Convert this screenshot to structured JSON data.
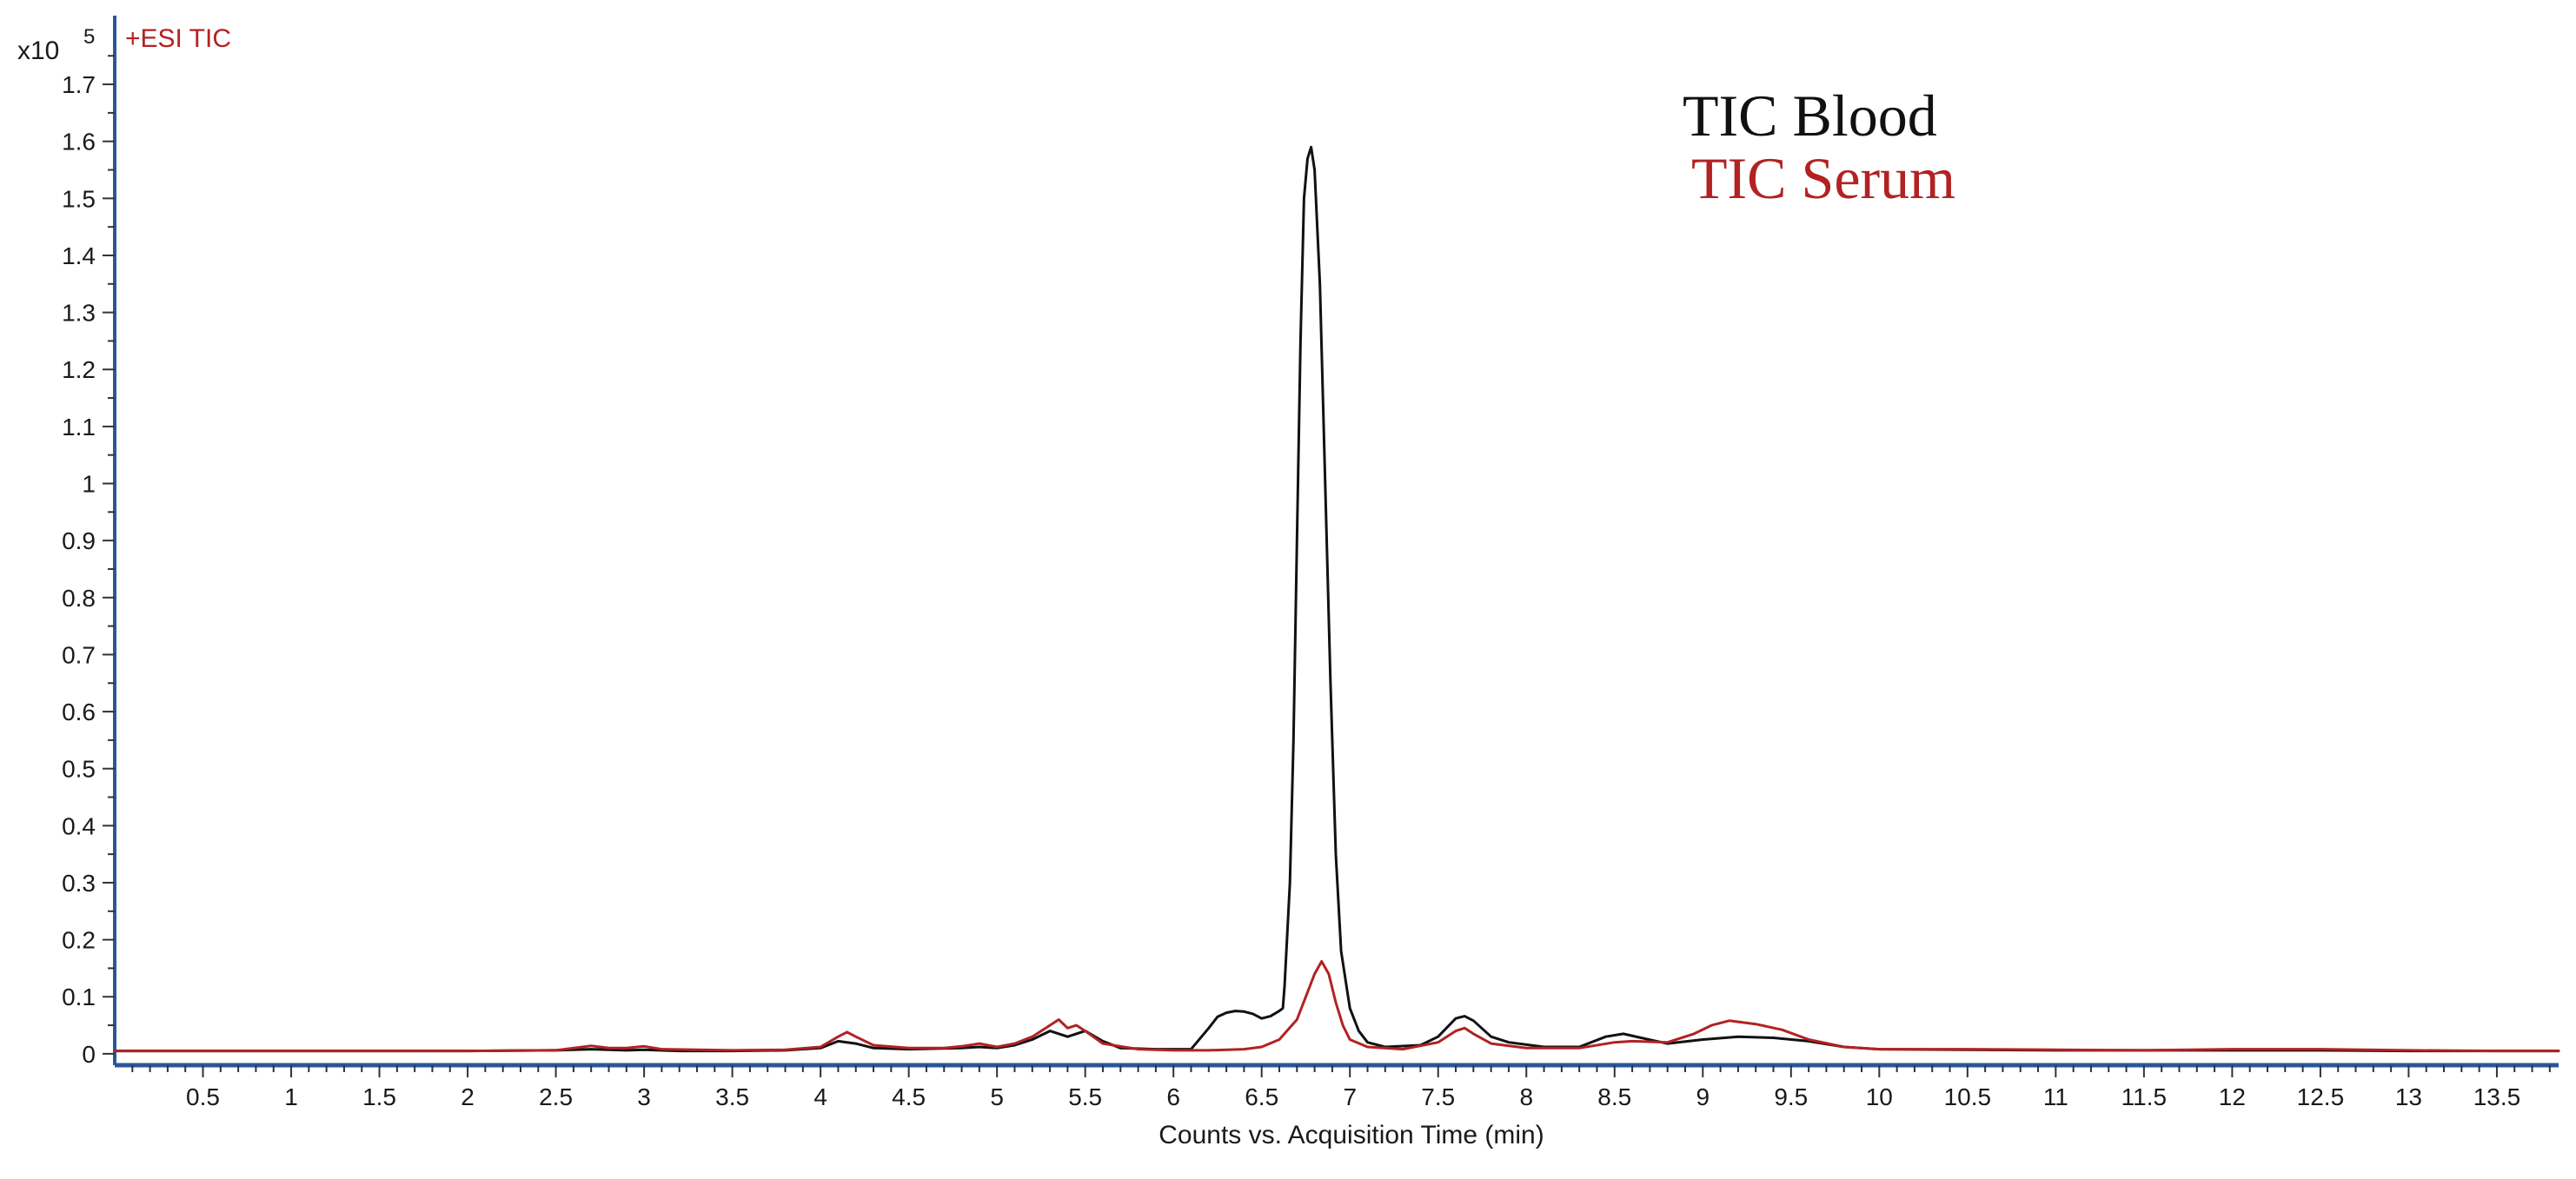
{
  "chart_data": {
    "type": "line",
    "scan_label": "+ESI TIC",
    "exponent_label": "x10",
    "exponent_value": "5",
    "xlabel": "Counts vs. Acquisition Time (min)",
    "ylabel": "",
    "xlim": [
      0,
      13.85
    ],
    "ylim": [
      -0.02,
      1.79
    ],
    "x_ticks": [
      "0.5",
      "1",
      "1.5",
      "2",
      "2.5",
      "3",
      "3.5",
      "4",
      "4.5",
      "5",
      "5.5",
      "6",
      "6.5",
      "7",
      "7.5",
      "8",
      "8.5",
      "9",
      "9.5",
      "10",
      "10.5",
      "11",
      "11.5",
      "12",
      "12.5",
      "13",
      "13.5"
    ],
    "y_ticks": [
      "0",
      "0.1",
      "0.2",
      "0.3",
      "0.4",
      "0.5",
      "0.6",
      "0.7",
      "0.8",
      "0.9",
      "1",
      "1.1",
      "1.2",
      "1.3",
      "1.4",
      "1.5",
      "1.6",
      "1.7"
    ],
    "grid": false,
    "legend_position": "top-right",
    "colors": {
      "axis": "#2b5797",
      "blood": "#111111",
      "serum": "#b22222"
    },
    "series": [
      {
        "name": "TIC Blood",
        "color": "#111111",
        "points": [
          [
            0,
            0.005
          ],
          [
            0.5,
            0.005
          ],
          [
            1,
            0.005
          ],
          [
            1.5,
            0.005
          ],
          [
            2,
            0.005
          ],
          [
            2.5,
            0.006
          ],
          [
            2.7,
            0.008
          ],
          [
            2.9,
            0.006
          ],
          [
            3,
            0.007
          ],
          [
            3.2,
            0.005
          ],
          [
            3.5,
            0.005
          ],
          [
            3.8,
            0.006
          ],
          [
            4.0,
            0.01
          ],
          [
            4.1,
            0.022
          ],
          [
            4.2,
            0.018
          ],
          [
            4.3,
            0.01
          ],
          [
            4.5,
            0.008
          ],
          [
            4.8,
            0.01
          ],
          [
            4.9,
            0.012
          ],
          [
            5.0,
            0.01
          ],
          [
            5.1,
            0.015
          ],
          [
            5.2,
            0.025
          ],
          [
            5.3,
            0.04
          ],
          [
            5.4,
            0.03
          ],
          [
            5.5,
            0.04
          ],
          [
            5.6,
            0.022
          ],
          [
            5.7,
            0.01
          ],
          [
            5.9,
            0.008
          ],
          [
            6.0,
            0.008
          ],
          [
            6.1,
            0.008
          ],
          [
            6.2,
            0.045
          ],
          [
            6.25,
            0.065
          ],
          [
            6.3,
            0.072
          ],
          [
            6.35,
            0.075
          ],
          [
            6.4,
            0.074
          ],
          [
            6.45,
            0.07
          ],
          [
            6.5,
            0.062
          ],
          [
            6.55,
            0.066
          ],
          [
            6.6,
            0.075
          ],
          [
            6.62,
            0.08
          ],
          [
            6.63,
            0.12
          ],
          [
            6.66,
            0.3
          ],
          [
            6.68,
            0.55
          ],
          [
            6.7,
            0.9
          ],
          [
            6.72,
            1.25
          ],
          [
            6.74,
            1.5
          ],
          [
            6.76,
            1.57
          ],
          [
            6.78,
            1.59
          ],
          [
            6.8,
            1.55
          ],
          [
            6.83,
            1.35
          ],
          [
            6.86,
            1.0
          ],
          [
            6.89,
            0.65
          ],
          [
            6.92,
            0.35
          ],
          [
            6.95,
            0.18
          ],
          [
            7.0,
            0.08
          ],
          [
            7.05,
            0.04
          ],
          [
            7.1,
            0.02
          ],
          [
            7.2,
            0.012
          ],
          [
            7.4,
            0.015
          ],
          [
            7.5,
            0.03
          ],
          [
            7.6,
            0.062
          ],
          [
            7.65,
            0.066
          ],
          [
            7.7,
            0.058
          ],
          [
            7.8,
            0.03
          ],
          [
            7.9,
            0.02
          ],
          [
            8.1,
            0.012
          ],
          [
            8.3,
            0.012
          ],
          [
            8.45,
            0.03
          ],
          [
            8.55,
            0.035
          ],
          [
            8.65,
            0.028
          ],
          [
            8.8,
            0.018
          ],
          [
            9.0,
            0.025
          ],
          [
            9.2,
            0.03
          ],
          [
            9.4,
            0.028
          ],
          [
            9.6,
            0.022
          ],
          [
            9.8,
            0.012
          ],
          [
            10.0,
            0.008
          ],
          [
            10.5,
            0.007
          ],
          [
            11,
            0.006
          ],
          [
            11.5,
            0.006
          ],
          [
            12,
            0.006
          ],
          [
            12.5,
            0.006
          ],
          [
            13,
            0.005
          ],
          [
            13.5,
            0.005
          ],
          [
            13.85,
            0.005
          ]
        ]
      },
      {
        "name": "TIC Serum",
        "color": "#b22222",
        "points": [
          [
            0,
            0.005
          ],
          [
            0.5,
            0.005
          ],
          [
            1,
            0.005
          ],
          [
            1.5,
            0.005
          ],
          [
            2,
            0.005
          ],
          [
            2.5,
            0.006
          ],
          [
            2.7,
            0.014
          ],
          [
            2.8,
            0.01
          ],
          [
            2.9,
            0.01
          ],
          [
            3.0,
            0.013
          ],
          [
            3.1,
            0.008
          ],
          [
            3.5,
            0.006
          ],
          [
            3.8,
            0.007
          ],
          [
            4.0,
            0.012
          ],
          [
            4.1,
            0.03
          ],
          [
            4.15,
            0.038
          ],
          [
            4.2,
            0.03
          ],
          [
            4.3,
            0.015
          ],
          [
            4.5,
            0.01
          ],
          [
            4.7,
            0.01
          ],
          [
            4.8,
            0.013
          ],
          [
            4.9,
            0.018
          ],
          [
            5.0,
            0.012
          ],
          [
            5.1,
            0.018
          ],
          [
            5.2,
            0.03
          ],
          [
            5.3,
            0.05
          ],
          [
            5.35,
            0.06
          ],
          [
            5.4,
            0.045
          ],
          [
            5.45,
            0.05
          ],
          [
            5.5,
            0.04
          ],
          [
            5.6,
            0.018
          ],
          [
            5.8,
            0.008
          ],
          [
            6.0,
            0.006
          ],
          [
            6.2,
            0.006
          ],
          [
            6.4,
            0.008
          ],
          [
            6.5,
            0.012
          ],
          [
            6.6,
            0.025
          ],
          [
            6.7,
            0.06
          ],
          [
            6.75,
            0.1
          ],
          [
            6.8,
            0.14
          ],
          [
            6.84,
            0.162
          ],
          [
            6.88,
            0.14
          ],
          [
            6.92,
            0.09
          ],
          [
            6.96,
            0.05
          ],
          [
            7.0,
            0.025
          ],
          [
            7.1,
            0.012
          ],
          [
            7.3,
            0.008
          ],
          [
            7.5,
            0.02
          ],
          [
            7.6,
            0.04
          ],
          [
            7.65,
            0.045
          ],
          [
            7.7,
            0.035
          ],
          [
            7.8,
            0.018
          ],
          [
            8.0,
            0.01
          ],
          [
            8.3,
            0.01
          ],
          [
            8.5,
            0.02
          ],
          [
            8.6,
            0.022
          ],
          [
            8.8,
            0.02
          ],
          [
            8.95,
            0.035
          ],
          [
            9.05,
            0.05
          ],
          [
            9.15,
            0.058
          ],
          [
            9.3,
            0.052
          ],
          [
            9.45,
            0.042
          ],
          [
            9.6,
            0.025
          ],
          [
            9.8,
            0.012
          ],
          [
            10.0,
            0.008
          ],
          [
            10.5,
            0.008
          ],
          [
            11,
            0.007
          ],
          [
            11.5,
            0.006
          ],
          [
            12,
            0.008
          ],
          [
            12.5,
            0.008
          ],
          [
            13,
            0.006
          ],
          [
            13.5,
            0.005
          ],
          [
            13.85,
            0.005
          ]
        ]
      }
    ]
  }
}
